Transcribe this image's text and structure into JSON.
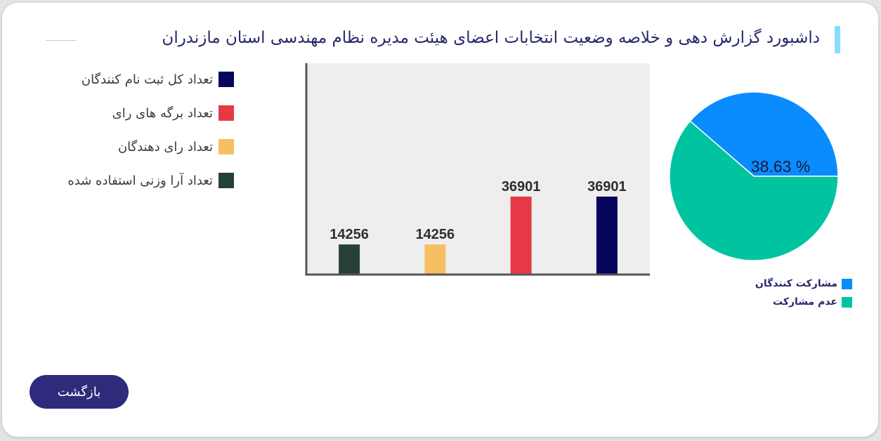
{
  "header": {
    "title": "داشبورد گزارش دهی و خلاصه وضعیت انتخابات اعضای هیئت مدیره نظام مهندسی استان مازندران"
  },
  "legend": [
    {
      "label": "تعداد کل ثبت نام کنندگان",
      "color": "#07065c"
    },
    {
      "label": "تعداد برگه های رای",
      "color": "#e63946"
    },
    {
      "label": "تعداد رای دهندگان",
      "color": "#f5bf62"
    },
    {
      "label": "تعداد آرا وزنی استفاده شده",
      "color": "#27403a"
    }
  ],
  "chart_data": [
    {
      "type": "bar",
      "categories": [
        "تعداد آرا وزنی استفاده شده",
        "تعداد رای دهندگان",
        "تعداد برگه های رای",
        "تعداد کل ثبت نام کنندگان"
      ],
      "values": [
        14256,
        14256,
        36901,
        36901
      ],
      "colors": [
        "#27403a",
        "#f5bf62",
        "#e63946",
        "#07065c"
      ],
      "data_labels": [
        "14256",
        "14256",
        "36901",
        "36901"
      ],
      "ylim": [
        0,
        100000
      ],
      "grid": false,
      "background": "#eeeeee"
    },
    {
      "type": "pie",
      "slices": [
        {
          "label": "مشارکت کنندگان",
          "value": 38.63,
          "color": "#0a8cff"
        },
        {
          "label": "عدم مشارکت",
          "value": 61.37,
          "color": "#00c49f"
        }
      ],
      "data_label": "38.63 %",
      "legend": "bottom-right"
    }
  ],
  "pie_legend": [
    {
      "label": "مشارکت کنندگان",
      "color": "#0a8cff"
    },
    {
      "label": "عدم مشارکت",
      "color": "#00c49f"
    }
  ],
  "actions": {
    "back_label": "بازگشت"
  }
}
